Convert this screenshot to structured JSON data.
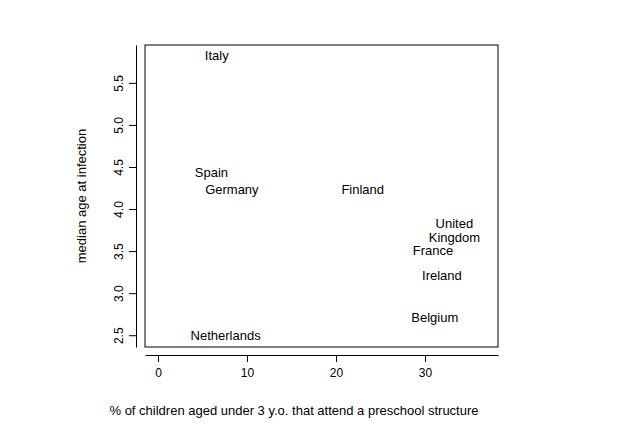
{
  "chart_data": {
    "type": "scatter",
    "marker": "text",
    "x_label": "% of children aged under 3 y.o. that attend a preschool structure",
    "y_label": "median age at infection",
    "labels": [
      "Italy",
      "Spain",
      "Germany",
      "Finland",
      "United\nKingdom",
      "France",
      "Ireland",
      "Belgium",
      "Netherlands"
    ],
    "x": [
      6.6,
      6.0,
      8.3,
      23.0,
      33.3,
      30.9,
      31.9,
      31.1,
      7.6
    ],
    "values": [
      5.83,
      4.43,
      4.23,
      4.23,
      3.74,
      3.51,
      3.21,
      2.71,
      2.5
    ],
    "xlim": [
      -1.46,
      38.2
    ],
    "ylim": [
      2.36,
      5.95
    ],
    "xticks": [
      0,
      10,
      20,
      30
    ],
    "yticks": [
      2.5,
      {
        "value": 3,
        "label": "3.0"
      },
      3.5,
      {
        "value": 4,
        "label": "4.0"
      },
      4.5,
      {
        "value": 5,
        "label": "5.0"
      },
      5.5
    ],
    "grid": false
  }
}
